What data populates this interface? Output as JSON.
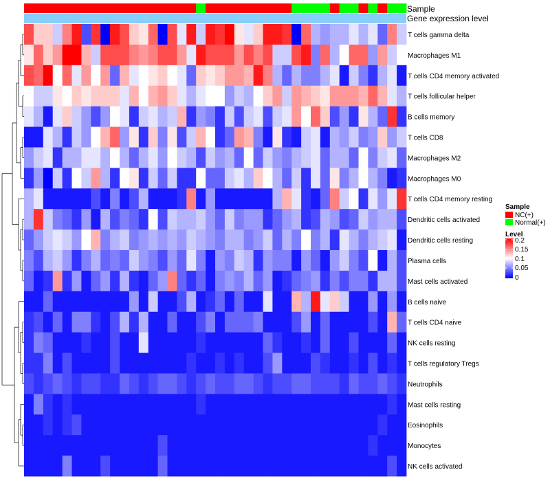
{
  "chart_data": {
    "type": "heatmap",
    "annotation_labels": {
      "sample": "Sample",
      "level_bar": "Gene expression level"
    },
    "legend": {
      "sample_title": "Sample",
      "sample_entries": [
        {
          "name": "NC(+)",
          "color": "#ff0000"
        },
        {
          "name": "Normal(+)",
          "color": "#00ff00"
        }
      ],
      "level_title": "Level",
      "level_ticks": [
        "0.2",
        "0.15",
        "0.1",
        "0.05",
        "0"
      ]
    },
    "color_scale": {
      "low": "#0000ff",
      "mid": "#ffffff",
      "high": "#ff0000",
      "min": 0,
      "mid_value": 0.1,
      "max": 0.2
    },
    "level_bar_color": "#87cefa",
    "sample_groups": [
      "NC",
      "NC",
      "NC",
      "NC",
      "NC",
      "NC",
      "NC",
      "NC",
      "NC",
      "NC",
      "NC",
      "NC",
      "NC",
      "NC",
      "NC",
      "NC",
      "NC",
      "NC",
      "Normal",
      "NC",
      "NC",
      "NC",
      "NC",
      "NC",
      "NC",
      "NC",
      "NC",
      "NC",
      "Normal",
      "Normal",
      "Normal",
      "Normal",
      "NC",
      "Normal",
      "Normal",
      "NC",
      "Normal",
      "NC",
      "Normal",
      "Normal"
    ],
    "rows": [
      "T cells gamma delta",
      "Macrophages M1",
      "T cells CD4 memory activated",
      "T cells follicular helper",
      "B cells memory",
      "T cells CD8",
      "Macrophages M2",
      "Macrophages M0",
      "T cells CD4 memory resting",
      "Dendritic cells activated",
      "Dendritic cells resting",
      "Plasma cells",
      "Mast cells activated",
      "B cells naive",
      "T cells CD4 naive",
      "NK cells resting",
      "T cells regulatory  Tregs",
      "Neutrophils",
      "Mast cells resting",
      "Eosinophils",
      "Monocytes",
      "NK cells activated"
    ],
    "values": [
      [
        0.17,
        0.12,
        0.12,
        0.08,
        0.15,
        0.19,
        0.03,
        0.18,
        0.0,
        0.19,
        0.17,
        0.12,
        0.11,
        0.16,
        0.0,
        0.17,
        0.09,
        0.19,
        0.08,
        0.19,
        0.18,
        0.2,
        0.11,
        0.09,
        0.12,
        0.19,
        0.19,
        0.18,
        0.0,
        0.16,
        0.07,
        0.06,
        0.07,
        0.07,
        0.09,
        0.07,
        0.09,
        0.04,
        0.15,
        0.08
      ],
      [
        0.11,
        0.16,
        0.12,
        0.14,
        0.2,
        0.2,
        0.13,
        0.08,
        0.17,
        0.17,
        0.17,
        0.15,
        0.14,
        0.15,
        0.17,
        0.17,
        0.14,
        0.09,
        0.19,
        0.17,
        0.17,
        0.17,
        0.14,
        0.17,
        0.15,
        0.17,
        0.08,
        0.08,
        0.17,
        0.19,
        0.05,
        0.16,
        0.07,
        0.1,
        0.16,
        0.16,
        0.06,
        0.14,
        0.08,
        0.1
      ],
      [
        0.17,
        0.16,
        0.2,
        0.1,
        0.16,
        0.09,
        0.14,
        0.1,
        0.14,
        0.04,
        0.13,
        0.09,
        0.1,
        0.11,
        0.12,
        0.1,
        0.09,
        0.04,
        0.12,
        0.11,
        0.12,
        0.14,
        0.14,
        0.13,
        0.19,
        0.15,
        0.07,
        0.04,
        0.07,
        0.05,
        0.05,
        0.07,
        0.09,
        0.01,
        0.08,
        0.05,
        0.02,
        0.07,
        0.09,
        0.01
      ],
      [
        0.1,
        0.08,
        0.08,
        0.11,
        0.1,
        0.12,
        0.11,
        0.12,
        0.12,
        0.12,
        0.09,
        0.13,
        0.1,
        0.13,
        0.14,
        0.12,
        0.09,
        0.07,
        0.09,
        0.1,
        0.1,
        0.06,
        0.08,
        0.07,
        0.1,
        0.12,
        0.14,
        0.08,
        0.14,
        0.13,
        0.12,
        0.11,
        0.14,
        0.14,
        0.14,
        0.13,
        0.16,
        0.13,
        0.09,
        0.07
      ],
      [
        0.09,
        0.07,
        0.01,
        0.09,
        0.12,
        0.08,
        0.06,
        0.03,
        0.06,
        0.1,
        0.09,
        0.02,
        0.08,
        0.09,
        0.07,
        0.08,
        0.13,
        0.02,
        0.06,
        0.05,
        0.02,
        0.08,
        0.03,
        0.08,
        0.09,
        0.03,
        0.08,
        0.09,
        0.14,
        0.1,
        0.16,
        0.12,
        0.03,
        0.06,
        0.02,
        0.11,
        0.07,
        0.04,
        0.18,
        0.02
      ],
      [
        0.01,
        0.01,
        0.09,
        0.07,
        0.02,
        0.08,
        0.06,
        0.1,
        0.13,
        0.16,
        0.06,
        0.11,
        0.02,
        0.12,
        0.05,
        0.11,
        0.03,
        0.08,
        0.13,
        0.1,
        0.02,
        0.04,
        0.14,
        0.13,
        0.05,
        0.01,
        0.11,
        0.02,
        0.01,
        0.08,
        0.09,
        0.01,
        0.07,
        0.06,
        0.08,
        0.05,
        0.06,
        0.12,
        0.06,
        0.08
      ],
      [
        0.06,
        0.08,
        0.09,
        0.02,
        0.07,
        0.07,
        0.09,
        0.09,
        0.07,
        0.1,
        0.07,
        0.04,
        0.07,
        0.09,
        0.06,
        0.1,
        0.08,
        0.07,
        0.03,
        0.08,
        0.06,
        0.07,
        0.04,
        0.1,
        0.04,
        0.08,
        0.06,
        0.05,
        0.07,
        0.08,
        0.09,
        0.04,
        0.07,
        0.07,
        0.04,
        0.1,
        0.05,
        0.08,
        0.09,
        0.04
      ],
      [
        0.02,
        0.06,
        0.0,
        0.08,
        0.02,
        0.1,
        0.08,
        0.14,
        0.07,
        0.02,
        0.1,
        0.11,
        0.02,
        0.08,
        0.04,
        0.08,
        0.02,
        0.02,
        0.1,
        0.04,
        0.04,
        0.08,
        0.09,
        0.07,
        0.12,
        0.1,
        0.07,
        0.04,
        0.08,
        0.02,
        0.09,
        0.04,
        0.11,
        0.05,
        0.07,
        0.1,
        0.07,
        0.05,
        0.01,
        0.02
      ],
      [
        0.07,
        0.09,
        0.01,
        0.01,
        0.01,
        0.01,
        0.01,
        0.03,
        0.01,
        0.05,
        0.01,
        0.03,
        0.07,
        0.01,
        0.01,
        0.01,
        0.02,
        0.15,
        0.01,
        0.06,
        0.01,
        0.01,
        0.01,
        0.01,
        0.01,
        0.01,
        0.07,
        0.13,
        0.09,
        0.02,
        0.01,
        0.04,
        0.15,
        0.08,
        0.1,
        0.02,
        0.09,
        0.06,
        0.09,
        0.18
      ],
      [
        0.07,
        0.18,
        0.08,
        0.05,
        0.04,
        0.02,
        0.06,
        0.01,
        0.07,
        0.03,
        0.05,
        0.04,
        0.02,
        0.1,
        0.03,
        0.08,
        0.07,
        0.07,
        0.08,
        0.06,
        0.04,
        0.08,
        0.05,
        0.06,
        0.06,
        0.02,
        0.04,
        0.06,
        0.07,
        0.02,
        0.03,
        0.07,
        0.06,
        0.03,
        0.04,
        0.08,
        0.06,
        0.07,
        0.07,
        0.03
      ],
      [
        0.04,
        0.06,
        0.08,
        0.09,
        0.08,
        0.06,
        0.1,
        0.13,
        0.05,
        0.07,
        0.08,
        0.05,
        0.06,
        0.07,
        0.06,
        0.07,
        0.06,
        0.08,
        0.07,
        0.06,
        0.05,
        0.07,
        0.07,
        0.05,
        0.06,
        0.08,
        0.04,
        0.07,
        0.05,
        0.1,
        0.05,
        0.07,
        0.02,
        0.09,
        0.07,
        0.05,
        0.07,
        0.08,
        0.09,
        0.01
      ],
      [
        0.05,
        0.03,
        0.07,
        0.08,
        0.06,
        0.02,
        0.05,
        0.07,
        0.04,
        0.05,
        0.04,
        0.08,
        0.06,
        0.05,
        0.03,
        0.06,
        0.04,
        0.09,
        0.05,
        0.01,
        0.06,
        0.05,
        0.08,
        0.07,
        0.02,
        0.06,
        0.05,
        0.05,
        0.01,
        0.06,
        0.04,
        0.01,
        0.06,
        0.08,
        0.05,
        0.03,
        0.1,
        0.01,
        0.07,
        0.03
      ],
      [
        0.04,
        0.01,
        0.02,
        0.14,
        0.02,
        0.06,
        0.01,
        0.04,
        0.06,
        0.02,
        0.07,
        0.02,
        0.01,
        0.04,
        0.06,
        0.15,
        0.04,
        0.02,
        0.04,
        0.01,
        0.05,
        0.06,
        0.05,
        0.07,
        0.04,
        0.06,
        0.01,
        0.02,
        0.04,
        0.05,
        0.06,
        0.02,
        0.05,
        0.03,
        0.05,
        0.05,
        0.02,
        0.07,
        0.07,
        0.03
      ],
      [
        0.01,
        0.01,
        0.04,
        0.01,
        0.01,
        0.01,
        0.01,
        0.01,
        0.01,
        0.01,
        0.01,
        0.06,
        0.01,
        0.08,
        0.01,
        0.01,
        0.03,
        0.07,
        0.01,
        0.02,
        0.04,
        0.01,
        0.04,
        0.01,
        0.01,
        0.09,
        0.01,
        0.01,
        0.13,
        0.07,
        0.19,
        0.09,
        0.12,
        0.08,
        0.01,
        0.01,
        0.06,
        0.01,
        0.06,
        0.01
      ],
      [
        0.02,
        0.03,
        0.01,
        0.04,
        0.01,
        0.05,
        0.05,
        0.02,
        0.01,
        0.03,
        0.07,
        0.02,
        0.07,
        0.01,
        0.01,
        0.04,
        0.01,
        0.01,
        0.03,
        0.05,
        0.01,
        0.04,
        0.04,
        0.04,
        0.05,
        0.01,
        0.01,
        0.01,
        0.03,
        0.06,
        0.01,
        0.04,
        0.01,
        0.01,
        0.01,
        0.01,
        0.03,
        0.01,
        0.13,
        0.04
      ],
      [
        0.02,
        0.05,
        0.04,
        0.01,
        0.01,
        0.01,
        0.02,
        0.01,
        0.01,
        0.03,
        0.01,
        0.01,
        0.09,
        0.01,
        0.01,
        0.01,
        0.01,
        0.01,
        0.02,
        0.01,
        0.01,
        0.01,
        0.01,
        0.01,
        0.01,
        0.04,
        0.02,
        0.01,
        0.01,
        0.02,
        0.01,
        0.04,
        0.01,
        0.01,
        0.03,
        0.01,
        0.01,
        0.01,
        0.04,
        0.01
      ],
      [
        0.02,
        0.02,
        0.05,
        0.01,
        0.03,
        0.01,
        0.01,
        0.01,
        0.01,
        0.03,
        0.01,
        0.01,
        0.01,
        0.01,
        0.01,
        0.01,
        0.01,
        0.02,
        0.01,
        0.01,
        0.02,
        0.01,
        0.02,
        0.01,
        0.01,
        0.03,
        0.06,
        0.01,
        0.01,
        0.01,
        0.03,
        0.02,
        0.01,
        0.01,
        0.02,
        0.01,
        0.03,
        0.01,
        0.02,
        0.01
      ],
      [
        0.03,
        0.02,
        0.03,
        0.04,
        0.03,
        0.02,
        0.03,
        0.03,
        0.02,
        0.02,
        0.04,
        0.03,
        0.02,
        0.03,
        0.04,
        0.04,
        0.03,
        0.02,
        0.03,
        0.04,
        0.03,
        0.03,
        0.04,
        0.04,
        0.03,
        0.02,
        0.03,
        0.03,
        0.04,
        0.04,
        0.03,
        0.03,
        0.03,
        0.02,
        0.04,
        0.03,
        0.03,
        0.04,
        0.03,
        0.02
      ],
      [
        0.01,
        0.05,
        0.02,
        0.01,
        0.02,
        0.01,
        0.01,
        0.01,
        0.01,
        0.01,
        0.01,
        0.01,
        0.01,
        0.01,
        0.01,
        0.01,
        0.01,
        0.01,
        0.02,
        0.01,
        0.01,
        0.01,
        0.01,
        0.01,
        0.01,
        0.01,
        0.01,
        0.01,
        0.01,
        0.01,
        0.01,
        0.01,
        0.01,
        0.01,
        0.01,
        0.01,
        0.01,
        0.01,
        0.02,
        0.01
      ],
      [
        0.01,
        0.01,
        0.02,
        0.01,
        0.02,
        0.03,
        0.01,
        0.01,
        0.01,
        0.01,
        0.01,
        0.01,
        0.01,
        0.01,
        0.01,
        0.01,
        0.01,
        0.01,
        0.01,
        0.01,
        0.01,
        0.01,
        0.01,
        0.01,
        0.01,
        0.01,
        0.01,
        0.01,
        0.01,
        0.01,
        0.01,
        0.01,
        0.01,
        0.01,
        0.01,
        0.01,
        0.01,
        0.02,
        0.01,
        0.01
      ],
      [
        0.01,
        0.01,
        0.01,
        0.01,
        0.01,
        0.01,
        0.01,
        0.01,
        0.01,
        0.01,
        0.01,
        0.01,
        0.01,
        0.01,
        0.03,
        0.01,
        0.01,
        0.01,
        0.01,
        0.01,
        0.01,
        0.01,
        0.01,
        0.01,
        0.01,
        0.01,
        0.01,
        0.01,
        0.01,
        0.01,
        0.01,
        0.01,
        0.01,
        0.01,
        0.01,
        0.01,
        0.02,
        0.01,
        0.01,
        0.01
      ],
      [
        0.01,
        0.01,
        0.01,
        0.01,
        0.05,
        0.01,
        0.01,
        0.01,
        0.03,
        0.01,
        0.01,
        0.01,
        0.01,
        0.01,
        0.04,
        0.01,
        0.01,
        0.01,
        0.01,
        0.01,
        0.01,
        0.01,
        0.01,
        0.01,
        0.01,
        0.01,
        0.01,
        0.01,
        0.01,
        0.01,
        0.01,
        0.01,
        0.01,
        0.01,
        0.01,
        0.01,
        0.01,
        0.01,
        0.03,
        0.01
      ]
    ]
  }
}
